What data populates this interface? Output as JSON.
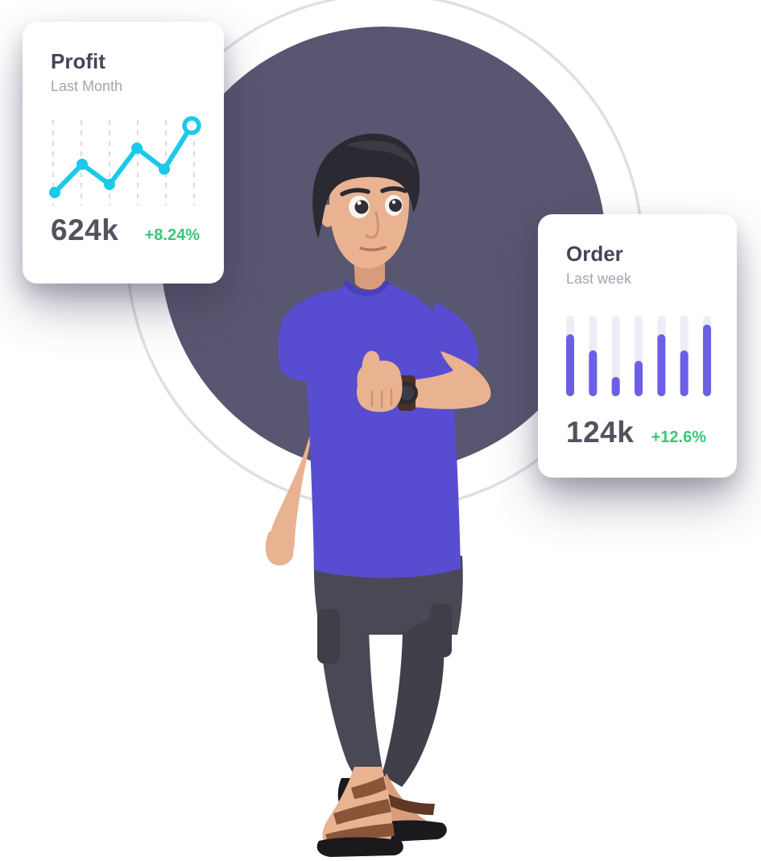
{
  "decor": {
    "circle_color": "#585670",
    "ring_color": "#dfdfe4",
    "page_bg": "#ffffff"
  },
  "cards": {
    "profit": {
      "title": "Profit",
      "subtitle": "Last Month",
      "value": "624k",
      "change": "+8.24%"
    },
    "order": {
      "title": "Order",
      "subtitle": "Last week",
      "value": "124k",
      "change": "+12.6%"
    }
  },
  "colors": {
    "title": "#474558",
    "subtitle": "#a5a4b0",
    "value": "#54525f",
    "positive": "#38c677",
    "line": "#1cc9e9",
    "grid": "#d9d9e1",
    "bar": "#6c5ee6",
    "bar_track": "#ededf6"
  },
  "chart_data": [
    {
      "type": "line",
      "title": "Profit",
      "subtitle": "Last Month",
      "x": [
        1,
        2,
        3,
        4,
        5,
        6
      ],
      "values": [
        7,
        42,
        17,
        62,
        36,
        90
      ],
      "ylim": [
        0,
        100
      ],
      "grid": "vertical-dashed",
      "gridlines": 6,
      "line_color": "#1cc9e9",
      "last_point": "open-ring",
      "legend": "none",
      "axis_labels": "none"
    },
    {
      "type": "bar",
      "title": "Order",
      "subtitle": "Last week",
      "values": [
        77,
        57,
        24,
        44,
        77,
        57,
        89
      ],
      "ylim": [
        0,
        100
      ],
      "orientation": "vertical",
      "rounded": true,
      "bar_color": "#6c5ee6",
      "track_color": "#ededf6",
      "legend": "none",
      "axis_labels": "none"
    }
  ],
  "illustration": {
    "palette": {
      "skin": "#e9b290",
      "skin_shade": "#d99c7a",
      "skin_line": "#cf9372",
      "hair": "#2b2931",
      "hair_hi": "#3d3a45",
      "shirt": "#584dd0",
      "shirt_dark": "#4a40bd",
      "pants": "#4a4854",
      "pants_dark": "#413f4a",
      "pocket": "#403e49",
      "sandal": "#8a5438",
      "sandal_dark": "#5f3826",
      "sole": "#1a191d",
      "watch_face": "#2c2b32",
      "watch_band": "#4a3128"
    }
  }
}
